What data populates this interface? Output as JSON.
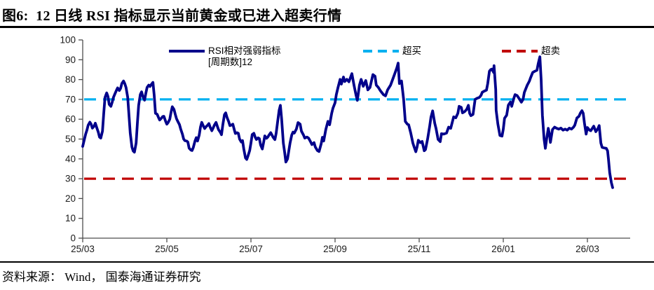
{
  "title": "图6:  12 日线 RSI 指标显示当前黄金或已进入超卖行情",
  "source": "资料来源： Wind， 国泰海通证券研究",
  "chart_data": {
    "type": "line",
    "title": "12日线RSI指标",
    "xlabel": "",
    "ylabel": "",
    "ylim": [
      0,
      100
    ],
    "grid": false,
    "legend_position": "top",
    "axis_color": "#4d4d4d",
    "tick_label_color": "#1a1a1a",
    "y_ticks": [
      0,
      10,
      20,
      30,
      40,
      50,
      60,
      70,
      80,
      90,
      100
    ],
    "x_tick_labels": [
      "25/03",
      "25/05",
      "25/07",
      "25/09",
      "25/11",
      "26/01",
      "26/03"
    ],
    "x_tick_months": [
      0,
      2,
      4,
      6,
      8,
      10,
      12
    ],
    "thresholds": [
      {
        "name": "overbought-line",
        "label": "超买",
        "value": 70,
        "color": "#00B0F0"
      },
      {
        "name": "oversold-line",
        "label": "超卖",
        "value": 30,
        "color": "#C00000"
      }
    ],
    "legend": [
      {
        "label_line1": "RSI相对强弱指标",
        "label_line2": "[周期数]12",
        "color": "#00008B",
        "style": "solid"
      },
      {
        "label": "超买",
        "color": "#00B0F0",
        "style": "dashed"
      },
      {
        "label": "超卖",
        "color": "#C00000",
        "style": "dashed"
      }
    ],
    "series": [
      {
        "name": "RSI相对强弱指标[周期数]12",
        "color": "#00008B",
        "x_months": [
          0.0,
          0.03,
          0.07,
          0.1,
          0.13,
          0.17,
          0.2,
          0.23,
          0.27,
          0.3,
          0.33,
          0.37,
          0.4,
          0.43,
          0.47,
          0.5,
          0.53,
          0.57,
          0.6,
          0.63,
          0.67,
          0.7,
          0.73,
          0.77,
          0.8,
          0.83,
          0.87,
          0.9,
          0.93,
          0.97,
          1.0,
          1.03,
          1.07,
          1.1,
          1.13,
          1.17,
          1.2,
          1.23,
          1.27,
          1.3,
          1.33,
          1.37,
          1.4,
          1.43,
          1.47,
          1.5,
          1.53,
          1.57,
          1.6,
          1.63,
          1.67,
          1.7,
          1.73,
          1.77,
          1.8,
          1.83,
          1.87,
          1.9,
          1.93,
          1.97,
          2.0,
          2.03,
          2.07,
          2.1,
          2.13,
          2.17,
          2.2,
          2.23,
          2.27,
          2.3,
          2.33,
          2.37,
          2.4,
          2.43,
          2.47,
          2.5,
          2.53,
          2.57,
          2.6,
          2.63,
          2.67,
          2.7,
          2.73,
          2.77,
          2.8,
          2.83,
          2.87,
          2.9,
          2.93,
          2.97,
          3.0,
          3.03,
          3.07,
          3.1,
          3.13,
          3.17,
          3.2,
          3.23,
          3.27,
          3.3,
          3.33,
          3.37,
          3.4,
          3.43,
          3.47,
          3.5,
          3.53,
          3.57,
          3.6,
          3.63,
          3.67,
          3.7,
          3.73,
          3.77,
          3.8,
          3.83,
          3.87,
          3.9,
          3.93,
          3.97,
          4.0,
          4.03,
          4.07,
          4.1,
          4.13,
          4.17,
          4.2,
          4.23,
          4.27,
          4.3,
          4.33,
          4.37,
          4.4,
          4.43,
          4.47,
          4.5,
          4.53,
          4.57,
          4.6,
          4.63,
          4.67,
          4.7,
          4.73,
          4.77,
          4.8,
          4.83,
          4.87,
          4.9,
          4.93,
          4.97,
          5.0,
          5.03,
          5.08,
          5.12,
          5.17,
          5.2,
          5.25,
          5.28,
          5.33,
          5.37,
          5.42,
          5.45,
          5.5,
          5.53,
          5.58,
          5.62,
          5.67,
          5.7,
          5.73,
          5.78,
          5.83,
          5.87,
          5.92,
          5.95,
          6.0,
          6.03,
          6.07,
          6.12,
          6.15,
          6.2,
          6.23,
          6.28,
          6.33,
          6.4,
          6.45,
          6.5,
          6.53,
          6.58,
          6.62,
          6.67,
          6.73,
          6.78,
          6.83,
          6.9,
          6.95,
          6.98,
          7.03,
          7.08,
          7.15,
          7.2,
          7.25,
          7.32,
          7.37,
          7.42,
          7.47,
          7.5,
          7.53,
          7.58,
          7.63,
          7.67,
          7.72,
          7.75,
          7.8,
          7.85,
          7.88,
          7.92,
          7.95,
          7.98,
          8.03,
          8.07,
          8.12,
          8.15,
          8.2,
          8.25,
          8.28,
          8.32,
          8.37,
          8.4,
          8.45,
          8.5,
          8.53,
          8.58,
          8.65,
          8.7,
          8.75,
          8.82,
          8.87,
          8.92,
          8.95,
          9.0,
          9.03,
          9.08,
          9.13,
          9.17,
          9.2,
          9.23,
          9.28,
          9.33,
          9.38,
          9.43,
          9.47,
          9.5,
          9.55,
          9.6,
          9.63,
          9.67,
          9.7,
          9.73,
          9.77,
          9.78,
          9.82,
          9.83,
          9.87,
          9.92,
          9.97,
          10.0,
          10.03,
          10.08,
          10.12,
          10.17,
          10.2,
          10.25,
          10.28,
          10.33,
          10.38,
          10.43,
          10.47,
          10.5,
          10.57,
          10.62,
          10.65,
          10.7,
          10.75,
          10.8,
          10.83,
          10.87,
          10.9,
          10.93,
          10.97,
          11.0,
          11.03,
          11.07,
          11.1,
          11.12,
          11.17,
          11.22,
          11.27,
          11.32,
          11.37,
          11.42,
          11.47,
          11.52,
          11.57,
          11.62,
          11.67,
          11.7,
          11.75,
          11.8,
          11.83,
          11.87,
          11.9,
          11.93,
          11.97,
          12.0,
          12.05,
          12.08,
          12.12,
          12.15,
          12.2,
          12.25,
          12.28,
          12.32,
          12.35,
          12.4,
          12.45,
          12.48,
          12.5,
          12.53,
          12.57,
          12.6
        ],
        "values": [
          46.3,
          49,
          52.5,
          54.5,
          57,
          58.5,
          57.5,
          55.5,
          56.5,
          58,
          56,
          53.5,
          51,
          50.5,
          54,
          63,
          71,
          73.3,
          71.5,
          67.5,
          66.5,
          68.5,
          71,
          73,
          74.5,
          75.8,
          74.5,
          75.5,
          78,
          79.3,
          78,
          76,
          71,
          62,
          53,
          46,
          44,
          43.4,
          48,
          58,
          67,
          72.5,
          73.8,
          71.5,
          69.6,
          73,
          76,
          77.2,
          76.5,
          77.5,
          78.6,
          72,
          63,
          62.5,
          61,
          59.6,
          60.5,
          61.3,
          61.5,
          59,
          57.5,
          58.3,
          60,
          63.5,
          66.3,
          65,
          62.5,
          60.3,
          58.5,
          57.3,
          55,
          52.5,
          50,
          49.2,
          49,
          48.5,
          45.4,
          44.5,
          44.2,
          45.8,
          49,
          50.7,
          49,
          52,
          56,
          58.4,
          56.5,
          55.3,
          56.2,
          57,
          57.8,
          56,
          54.2,
          55.5,
          57,
          58.4,
          56.5,
          54.7,
          53.5,
          52.2,
          57,
          62.3,
          63.2,
          61,
          58.8,
          56.8,
          57,
          57.5,
          55,
          52.8,
          53.2,
          52.9,
          50,
          48.5,
          49.2,
          45,
          40.5,
          39.7,
          41.5,
          44.2,
          48,
          52.3,
          52.9,
          51,
          49.8,
          50.6,
          50.2,
          47,
          45,
          48.2,
          51.6,
          50.4,
          51,
          52,
          53.2,
          52,
          50.8,
          49.7,
          53,
          58,
          64.5,
          67,
          60,
          48,
          43.5,
          38.4,
          40,
          44,
          48,
          52,
          53.5,
          53,
          55,
          58.3,
          57.5,
          54,
          52,
          50.5,
          51,
          50.5,
          48.5,
          47.2,
          48.2,
          46,
          44.2,
          43.7,
          47.6,
          50.9,
          49,
          54.8,
          58.9,
          57.2,
          63,
          65.6,
          68.3,
          72.4,
          76,
          80.1,
          77.7,
          81.3,
          79,
          80.1,
          78.9,
          83,
          77.2,
          72,
          69.5,
          77.2,
          80.1,
          76.6,
          79.5,
          74.8,
          76,
          82.5,
          81.7,
          77.2,
          76,
          74.3,
          72.4,
          71.8,
          74.8,
          77.2,
          80.1,
          83,
          86,
          88.3,
          78,
          79.3,
          70,
          58.9,
          57.5,
          57.2,
          53,
          48,
          46,
          43.6,
          46,
          49.4,
          48.2,
          48.8,
          44.1,
          44.7,
          50,
          56.5,
          61,
          64.2,
          58,
          55.4,
          49.8,
          48.7,
          52.7,
          52.5,
          53,
          56,
          55.4,
          61.2,
          60.7,
          63,
          66.5,
          66,
          63.2,
          63.8,
          65,
          67,
          63,
          61.8,
          62.4,
          70,
          70.6,
          71,
          72,
          73.6,
          74.2,
          74.7,
          78,
          84.2,
          85,
          85.3,
          83.6,
          87,
          75,
          64.5,
          57.7,
          51.8,
          51.5,
          55,
          60.5,
          62,
          67.1,
          68.7,
          66.5,
          70.5,
          72.4,
          71.9,
          70.3,
          68.6,
          70,
          73.5,
          77.2,
          79.2,
          81,
          83.6,
          84.2,
          84.7,
          88,
          91.5,
          80,
          62,
          50,
          45.3,
          50,
          55.4,
          52,
          48.3,
          54.8,
          56,
          55.4,
          55,
          55.5,
          54.5,
          55,
          54.5,
          55.5,
          55,
          56,
          57,
          60.6,
          61.5,
          63,
          64.3,
          63,
          58,
          52.5,
          55.8,
          54.5,
          54.2,
          55.5,
          56.5,
          53.7,
          55.3,
          56.8,
          48,
          45.8,
          45.5,
          45.3,
          44,
          40,
          33,
          28,
          25.5
        ]
      }
    ]
  }
}
